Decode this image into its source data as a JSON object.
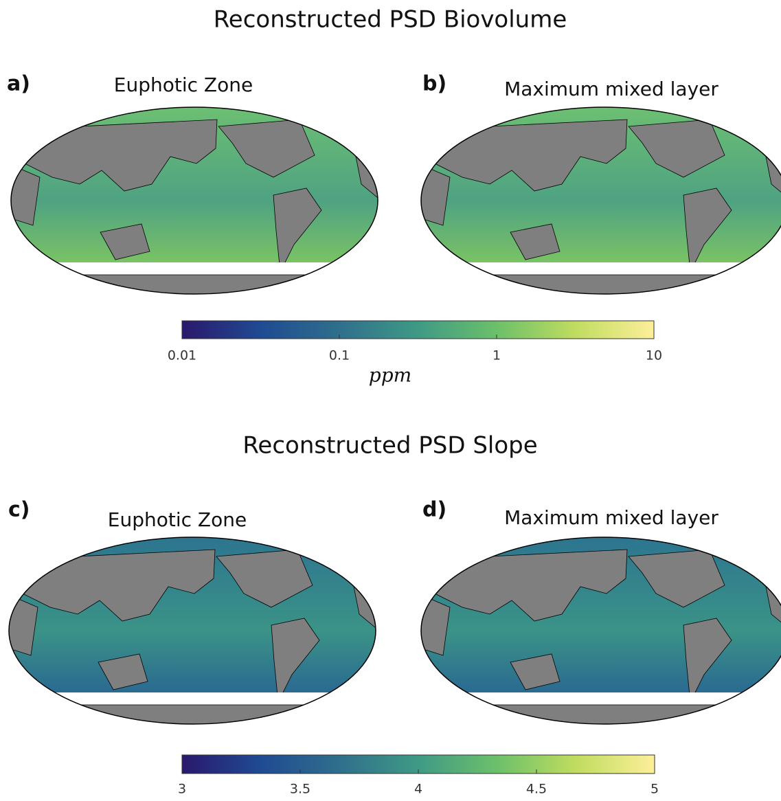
{
  "figures": [
    {
      "title": "Reconstructed PSD Biovolume",
      "panels": [
        {
          "letter": "a)",
          "subtitle": "Euphotic Zone"
        },
        {
          "letter": "b)",
          "subtitle": "Maximum mixed layer"
        }
      ],
      "colorbar": {
        "lim": [
          0.01,
          10
        ],
        "log": true,
        "ticks": [
          0.01,
          0.1,
          1,
          10
        ],
        "label": "ppm",
        "colors": [
          "#2a186c",
          "#1f4b92",
          "#2f6f8c",
          "#3f9a85",
          "#6cc06a",
          "#c0dc5f",
          "#fdef9a"
        ]
      }
    },
    {
      "title": "Reconstructed PSD Slope",
      "panels": [
        {
          "letter": "c)",
          "subtitle": "Euphotic Zone"
        },
        {
          "letter": "d)",
          "subtitle": "Maximum mixed layer"
        }
      ],
      "colorbar": {
        "lim": [
          3,
          5
        ],
        "log": false,
        "ticks": [
          3,
          3.5,
          4,
          4.5,
          5
        ],
        "colors": [
          "#2a186c",
          "#1f4b92",
          "#2f6f8c",
          "#3f9a85",
          "#6cc06a",
          "#c0dc5f",
          "#fdef9a"
        ]
      }
    }
  ]
}
